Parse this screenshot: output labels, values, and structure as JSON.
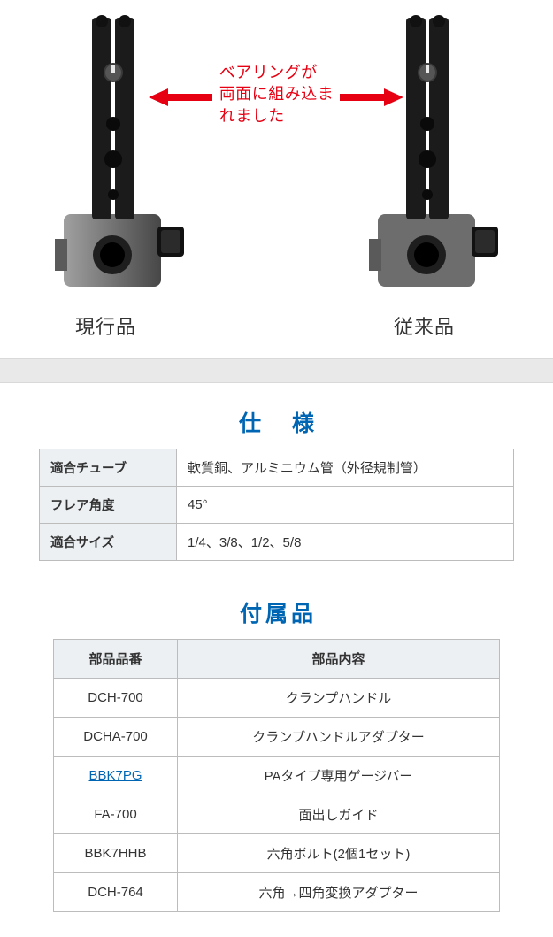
{
  "comparison": {
    "callout_text": "ベアリングが\n両面に組み込ま\nれました",
    "left_label": "現行品",
    "right_label": "従来品",
    "arrow_color": "#e60012",
    "callout_color": "#e60012",
    "tool": {
      "body_fill": "#1b1b1b",
      "base_fill": "#6d6d6d",
      "hole_fill": "#d8d8d8",
      "highlight": "#878787"
    }
  },
  "spec": {
    "title": "仕 様",
    "title_color": "#0066b3",
    "header_bg": "#ecf0f3",
    "border_color": "#bcbcbc",
    "rows": [
      {
        "label": "適合チューブ",
        "value": "軟質銅、アルミニウム管（外径規制管）"
      },
      {
        "label": "フレア角度",
        "value": "45°"
      },
      {
        "label": "適合サイズ",
        "value": "1/4、3/8、1/2、5/8"
      }
    ]
  },
  "accessories": {
    "title": "付属品",
    "title_color": "#0066b3",
    "header_bg": "#ecf0f3",
    "border_color": "#bcbcbc",
    "columns": [
      "部品品番",
      "部品内容"
    ],
    "link_color": "#0066b3",
    "rows": [
      {
        "pn": "DCH-700",
        "desc": "クランプハンドル",
        "link": false
      },
      {
        "pn": "DCHA-700",
        "desc": "クランプハンドルアダプター",
        "link": false
      },
      {
        "pn": "BBK7PG",
        "desc": "PAタイプ専用ゲージバー",
        "link": true
      },
      {
        "pn": "FA-700",
        "desc": "面出しガイド",
        "link": false
      },
      {
        "pn": "BBK7HHB",
        "desc": "六角ボルト(2個1セット)",
        "link": false
      },
      {
        "pn": "DCH-764",
        "desc": "六角→四角変換アダプター",
        "link": false
      }
    ]
  },
  "divider_bg": "#e9e9e9"
}
